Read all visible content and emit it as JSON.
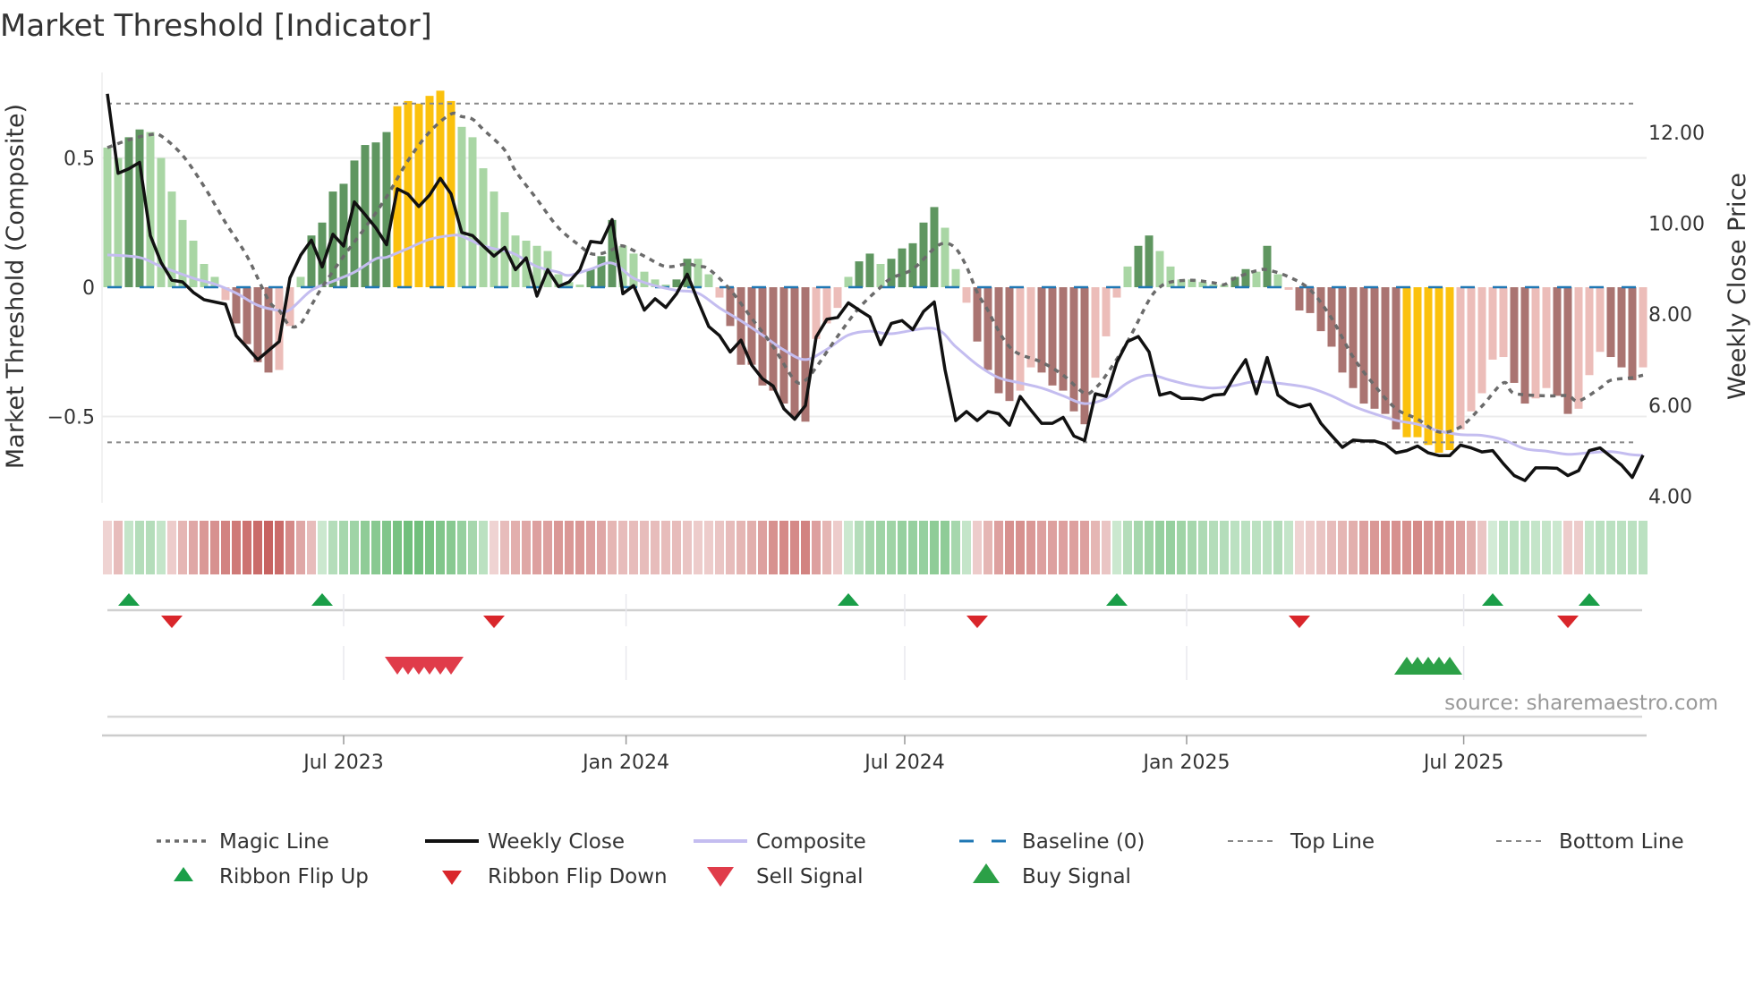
{
  "chart_data": {
    "type": "bar",
    "title": "Market Threshold [Indicator]",
    "ylabel_left": "Market Threshold (Composite)",
    "ylabel_right": "Weekly Close Price",
    "source": "source: sharemaestro.com",
    "ylim_left": [
      -0.8,
      0.8
    ],
    "ylim_right": [
      4.0,
      12.5
    ],
    "left_ticks": [
      {
        "v": 0.5,
        "label": "0.5"
      },
      {
        "v": 0,
        "label": "0"
      },
      {
        "v": -0.5,
        "label": "−0.5"
      }
    ],
    "right_ticks": [
      {
        "v": 12,
        "label": "12.00"
      },
      {
        "v": 10,
        "label": "10.00"
      },
      {
        "v": 8,
        "label": "8.00"
      },
      {
        "v": 6,
        "label": "6.00"
      },
      {
        "v": 4,
        "label": "4.00"
      }
    ],
    "x_ticks": [
      {
        "week": 22,
        "label": "Jul 2023"
      },
      {
        "week": 48.3,
        "label": "Jan 2024"
      },
      {
        "week": 74.25,
        "label": "Jul 2024"
      },
      {
        "week": 100.5,
        "label": "Jan 2025"
      },
      {
        "week": 126.3,
        "label": "Jul 2025"
      }
    ],
    "top_line": 0.71,
    "bottom_line": -0.6,
    "baseline": 0,
    "grid": true,
    "legend_position": "bottom",
    "colors": {
      "strong_up": "#5f9660",
      "weak_up": "#a9d6a4",
      "strong_down": "#aa7471",
      "weak_down": "#ecbdb9",
      "extreme": "#fbc10d",
      "close": "#111111",
      "magic": "#6b6b6b",
      "composite": "#c4bdf0",
      "baseline": "#1f77b4",
      "flip_up": "#1a9e48",
      "flip_down": "#d9262b",
      "buy": "#2ca047",
      "sell": "#e03c4a",
      "ribbon_up": "#4daf5b",
      "ribbon_down": "#c0504d"
    },
    "composite_bars": [
      0.54,
      0.5,
      0.58,
      0.61,
      0.6,
      0.5,
      0.37,
      0.26,
      0.18,
      0.09,
      0.04,
      -0.05,
      -0.14,
      -0.22,
      -0.29,
      -0.33,
      -0.32,
      -0.15,
      0.04,
      0.2,
      0.25,
      0.37,
      0.4,
      0.49,
      0.55,
      0.56,
      0.6,
      0.7,
      0.72,
      0.71,
      0.74,
      0.76,
      0.72,
      0.62,
      0.58,
      0.46,
      0.37,
      0.29,
      0.2,
      0.18,
      0.16,
      0.14,
      0.05,
      0.02,
      0.01,
      0.07,
      0.12,
      0.26,
      0.16,
      0.13,
      0.06,
      0.03,
      0.01,
      0.03,
      0.11,
      0.11,
      0.05,
      -0.04,
      -0.15,
      -0.3,
      -0.3,
      -0.38,
      -0.4,
      -0.45,
      -0.5,
      -0.52,
      -0.2,
      -0.14,
      -0.08,
      0.04,
      0.1,
      0.13,
      0.09,
      0.11,
      0.15,
      0.17,
      0.25,
      0.31,
      0.23,
      0.07,
      -0.06,
      -0.21,
      -0.32,
      -0.41,
      -0.44,
      -0.4,
      -0.31,
      -0.33,
      -0.38,
      -0.4,
      -0.48,
      -0.53,
      -0.35,
      -0.19,
      -0.04,
      0.08,
      0.16,
      0.2,
      0.14,
      0.08,
      0.03,
      0.03,
      0.02,
      0.01,
      0.01,
      0.04,
      0.07,
      0.06,
      0.16,
      0.05,
      -0.01,
      -0.09,
      -0.1,
      -0.17,
      -0.23,
      -0.33,
      -0.39,
      -0.45,
      -0.47,
      -0.49,
      -0.55,
      -0.58,
      -0.58,
      -0.61,
      -0.64,
      -0.63,
      -0.55,
      -0.48,
      -0.41,
      -0.28,
      -0.27,
      -0.37,
      -0.45,
      -0.43,
      -0.39,
      -0.42,
      -0.49,
      -0.47,
      -0.34,
      -0.25,
      -0.27,
      -0.31,
      -0.36,
      -0.31
    ],
    "bar_classes": "ggGGgggggggrRRRRrrgGGGGGGGGYYYYYYggggggggggggGGGgggggGGggrRRRRRRRRrrrgGGgGGGGGggrRRRRrrRRRRRrrrgGGgggggggGGgGgrRRRRRRRRRRYYYYYrrrrrRRrrRRrrrRRRr",
    "bar_class_legend": {
      "G": "strong up",
      "g": "weak up",
      "R": "strong down",
      "r": "weak down",
      "Y": "extreme"
    },
    "weekly_close": [
      12.85,
      11.1,
      11.2,
      11.34,
      9.73,
      9.14,
      8.75,
      8.71,
      8.48,
      8.32,
      8.27,
      8.22,
      7.53,
      7.27,
      7.0,
      7.2,
      7.4,
      8.8,
      9.3,
      9.63,
      9.04,
      9.76,
      9.5,
      10.47,
      10.19,
      9.9,
      9.53,
      10.76,
      10.64,
      10.37,
      10.62,
      10.99,
      10.65,
      9.8,
      9.73,
      9.5,
      9.28,
      9.47,
      8.98,
      9.24,
      8.4,
      8.98,
      8.61,
      8.71,
      8.98,
      9.6,
      9.57,
      10.08,
      8.45,
      8.63,
      8.09,
      8.34,
      8.15,
      8.45,
      8.88,
      8.29,
      7.73,
      7.53,
      7.17,
      7.43,
      6.88,
      6.58,
      6.42,
      5.92,
      5.69,
      5.99,
      7.5,
      7.89,
      7.93,
      8.25,
      8.09,
      7.94,
      7.33,
      7.8,
      7.86,
      7.66,
      8.06,
      8.27,
      6.78,
      5.66,
      5.86,
      5.66,
      5.86,
      5.81,
      5.56,
      6.19,
      5.89,
      5.6,
      5.6,
      5.73,
      5.32,
      5.22,
      6.25,
      6.19,
      6.94,
      7.4,
      7.51,
      7.17,
      6.22,
      6.28,
      6.15,
      6.15,
      6.12,
      6.22,
      6.24,
      6.65,
      7.0,
      6.25,
      7.05,
      6.22,
      6.05,
      5.96,
      6.02,
      5.6,
      5.33,
      5.07,
      5.23,
      5.21,
      5.21,
      5.14,
      4.95,
      5.0,
      5.1,
      4.95,
      4.89,
      4.89,
      5.12,
      5.06,
      4.97,
      5.0,
      4.71,
      4.45,
      4.34,
      4.62,
      4.62,
      4.61,
      4.45,
      4.56,
      5.0,
      5.06,
      4.87,
      4.68,
      4.41,
      4.9
    ],
    "magic_line": [
      [
        0,
        0.54
      ],
      [
        2,
        0.57
      ],
      [
        4,
        0.59
      ],
      [
        5,
        0.585
      ],
      [
        7,
        0.51
      ],
      [
        9,
        0.39
      ],
      [
        11,
        0.25
      ],
      [
        13,
        0.12
      ],
      [
        15,
        -0.05
      ],
      [
        16,
        -0.09
      ],
      [
        17,
        -0.15
      ],
      [
        18,
        -0.14
      ],
      [
        19,
        -0.07
      ],
      [
        20,
        0
      ],
      [
        22,
        0.12
      ],
      [
        24,
        0.23
      ],
      [
        26,
        0.35
      ],
      [
        28,
        0.49
      ],
      [
        30,
        0.6
      ],
      [
        32,
        0.67
      ],
      [
        33,
        0.66
      ],
      [
        34,
        0.65
      ],
      [
        35,
        0.61
      ],
      [
        37,
        0.53
      ],
      [
        38,
        0.45
      ],
      [
        40,
        0.34
      ],
      [
        42,
        0.23
      ],
      [
        44,
        0.16
      ],
      [
        45,
        0.13
      ],
      [
        46,
        0.13
      ],
      [
        47,
        0.145
      ],
      [
        48,
        0.16
      ],
      [
        50,
        0.12
      ],
      [
        52,
        0.08
      ],
      [
        54,
        0.09
      ],
      [
        55,
        0.08
      ],
      [
        56,
        0.07
      ],
      [
        58,
        -0.01
      ],
      [
        60,
        -0.12
      ],
      [
        62,
        -0.23
      ],
      [
        64,
        -0.36
      ],
      [
        65,
        -0.36
      ],
      [
        66,
        -0.31
      ],
      [
        68,
        -0.19
      ],
      [
        70,
        -0.08
      ],
      [
        72,
        0
      ],
      [
        73,
        0.035
      ],
      [
        75,
        0.07
      ],
      [
        77,
        0.15
      ],
      [
        78,
        0.17
      ],
      [
        79,
        0.15
      ],
      [
        80,
        0.08
      ],
      [
        81,
        -0.02
      ],
      [
        82,
        -0.09
      ],
      [
        83,
        -0.17
      ],
      [
        84,
        -0.23
      ],
      [
        85,
        -0.26
      ],
      [
        87,
        -0.29
      ],
      [
        89,
        -0.34
      ],
      [
        91,
        -0.41
      ],
      [
        92,
        -0.39
      ],
      [
        93,
        -0.34
      ],
      [
        95,
        -0.21
      ],
      [
        97,
        -0.05
      ],
      [
        98,
        0
      ],
      [
        99,
        0.02
      ],
      [
        101,
        0.027
      ],
      [
        103,
        0.017
      ],
      [
        104,
        0.01
      ],
      [
        105,
        0.035
      ],
      [
        107,
        0.064
      ],
      [
        108,
        0.067
      ],
      [
        110,
        0.04
      ],
      [
        112,
        -0.01
      ],
      [
        114,
        -0.12
      ],
      [
        116,
        -0.27
      ],
      [
        118,
        -0.38
      ],
      [
        120,
        -0.47
      ],
      [
        122,
        -0.51
      ],
      [
        124,
        -0.56
      ],
      [
        126,
        -0.54
      ],
      [
        128,
        -0.46
      ],
      [
        130,
        -0.37
      ],
      [
        131,
        -0.41
      ],
      [
        134,
        -0.42
      ],
      [
        136,
        -0.42
      ],
      [
        137,
        -0.44
      ],
      [
        139,
        -0.39
      ],
      [
        140,
        -0.36
      ],
      [
        142,
        -0.35
      ],
      [
        143,
        -0.34
      ]
    ],
    "composite_line": [
      [
        0,
        0.125
      ],
      [
        3,
        0.115
      ],
      [
        5,
        0.08
      ],
      [
        8,
        0.035
      ],
      [
        10,
        0.012
      ],
      [
        12,
        -0.023
      ],
      [
        14,
        -0.07
      ],
      [
        16,
        -0.09
      ],
      [
        17,
        -0.087
      ],
      [
        19,
        -0.012
      ],
      [
        21,
        0.023
      ],
      [
        23,
        0.058
      ],
      [
        25,
        0.11
      ],
      [
        26,
        0.116
      ],
      [
        28,
        0.15
      ],
      [
        30,
        0.185
      ],
      [
        32,
        0.2
      ],
      [
        33,
        0.197
      ],
      [
        35,
        0.16
      ],
      [
        37,
        0.14
      ],
      [
        38,
        0.127
      ],
      [
        40,
        0.08
      ],
      [
        42,
        0.058
      ],
      [
        43,
        0.046
      ],
      [
        45,
        0.07
      ],
      [
        47,
        0.093
      ],
      [
        49,
        0.035
      ],
      [
        51,
        0.006
      ],
      [
        53,
        -0.012
      ],
      [
        55,
        -0.023
      ],
      [
        57,
        -0.08
      ],
      [
        59,
        -0.13
      ],
      [
        61,
        -0.185
      ],
      [
        63,
        -0.243
      ],
      [
        65,
        -0.28
      ],
      [
        67,
        -0.24
      ],
      [
        69,
        -0.185
      ],
      [
        71,
        -0.17
      ],
      [
        73,
        -0.18
      ],
      [
        77,
        -0.16
      ],
      [
        79,
        -0.23
      ],
      [
        81,
        -0.3
      ],
      [
        83,
        -0.35
      ],
      [
        85,
        -0.37
      ],
      [
        87,
        -0.39
      ],
      [
        89,
        -0.42
      ],
      [
        91,
        -0.45
      ],
      [
        93,
        -0.43
      ],
      [
        95,
        -0.37
      ],
      [
        97,
        -0.34
      ],
      [
        99,
        -0.36
      ],
      [
        101,
        -0.38
      ],
      [
        103,
        -0.39
      ],
      [
        105,
        -0.38
      ],
      [
        107,
        -0.365
      ],
      [
        110,
        -0.376
      ],
      [
        112,
        -0.39
      ],
      [
        114,
        -0.42
      ],
      [
        116,
        -0.46
      ],
      [
        118,
        -0.49
      ],
      [
        120,
        -0.515
      ],
      [
        122,
        -0.53
      ],
      [
        124,
        -0.556
      ],
      [
        126,
        -0.57
      ],
      [
        128,
        -0.573
      ],
      [
        130,
        -0.59
      ],
      [
        132,
        -0.625
      ],
      [
        134,
        -0.634
      ],
      [
        136,
        -0.646
      ],
      [
        138,
        -0.64
      ],
      [
        140,
        -0.636
      ],
      [
        142,
        -0.648
      ],
      [
        143,
        -0.65
      ]
    ],
    "ribbon": [
      -0.15,
      -0.3,
      0.25,
      0.35,
      0.35,
      0.25,
      -0.2,
      -0.35,
      -0.45,
      -0.55,
      -0.6,
      -0.7,
      -0.75,
      -0.8,
      -0.85,
      -0.9,
      -0.85,
      -0.65,
      -0.45,
      -0.3,
      0.2,
      0.35,
      0.45,
      0.5,
      0.6,
      0.65,
      0.7,
      0.75,
      0.8,
      0.8,
      0.75,
      0.7,
      0.65,
      0.55,
      0.45,
      0.3,
      -0.15,
      -0.3,
      -0.4,
      -0.45,
      -0.5,
      -0.5,
      -0.55,
      -0.55,
      -0.55,
      -0.5,
      -0.45,
      -0.35,
      -0.3,
      -0.3,
      -0.3,
      -0.3,
      -0.3,
      -0.3,
      -0.25,
      -0.2,
      -0.2,
      -0.25,
      -0.3,
      -0.35,
      -0.4,
      -0.5,
      -0.6,
      -0.65,
      -0.65,
      -0.7,
      -0.5,
      -0.35,
      -0.2,
      0.2,
      0.35,
      0.45,
      0.5,
      0.5,
      0.55,
      0.55,
      0.55,
      0.6,
      0.6,
      0.45,
      0.25,
      -0.2,
      -0.35,
      -0.5,
      -0.6,
      -0.6,
      -0.55,
      -0.5,
      -0.5,
      -0.5,
      -0.5,
      -0.5,
      -0.35,
      -0.25,
      0.2,
      0.35,
      0.45,
      0.5,
      0.55,
      0.55,
      0.5,
      0.45,
      0.4,
      0.35,
      0.35,
      0.3,
      0.3,
      0.3,
      0.3,
      0.35,
      0.25,
      -0.15,
      -0.2,
      -0.25,
      -0.3,
      -0.35,
      -0.4,
      -0.5,
      -0.55,
      -0.6,
      -0.6,
      -0.6,
      -0.65,
      -0.6,
      -0.6,
      -0.55,
      -0.5,
      -0.4,
      -0.25,
      0.15,
      0.3,
      0.3,
      0.3,
      0.25,
      0.25,
      0.2,
      -0.2,
      -0.2,
      0.25,
      0.3,
      0.3,
      0.3,
      0.3,
      0.3
    ],
    "ribbon_flip_up": [
      2,
      20,
      69,
      94,
      129,
      138
    ],
    "ribbon_flip_down": [
      6,
      36,
      81,
      111,
      136
    ],
    "sell_signals": [
      27,
      28,
      29,
      30,
      31,
      32
    ],
    "buy_signals": [
      121,
      122,
      123,
      124,
      125
    ],
    "legend": [
      {
        "key": "magic",
        "label": "Magic Line"
      },
      {
        "key": "close",
        "label": "Weekly Close"
      },
      {
        "key": "composite",
        "label": "Composite"
      },
      {
        "key": "baseline",
        "label": "Baseline (0)"
      },
      {
        "key": "top",
        "label": "Top Line"
      },
      {
        "key": "bottom",
        "label": "Bottom Line"
      },
      {
        "key": "flipup",
        "label": "Ribbon Flip Up"
      },
      {
        "key": "flipdown",
        "label": "Ribbon Flip Down"
      },
      {
        "key": "sell",
        "label": "Sell Signal"
      },
      {
        "key": "buy",
        "label": "Buy Signal"
      }
    ]
  }
}
